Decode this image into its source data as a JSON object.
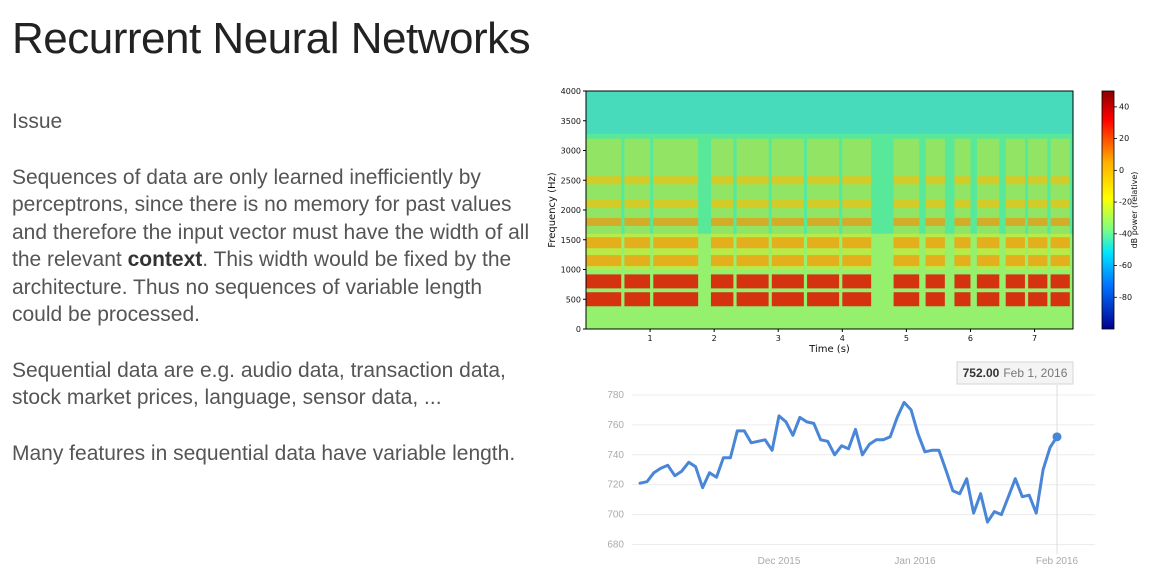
{
  "slide": {
    "title": "Recurrent Neural Networks",
    "issue_heading": "Issue",
    "para1_part1": "Sequences of data are only learned inefficiently by perceptrons, since there is no memory for past values and therefore the input vector must have the width of all the relevant ",
    "para1_bold": "context",
    "para1_part2": ". This width would be fixed by the architecture. Thus no sequences of variable length could be processed.",
    "para2": "Sequential data are e.g. audio data, transaction data, stock market prices, language, sensor data, ...",
    "para3": "Many features in sequential data have variable length."
  },
  "chart_data": [
    {
      "type": "heatmap",
      "xlabel": "Time (s)",
      "ylabel": "Frequency (Hz)",
      "xlim": [
        0,
        7.6
      ],
      "ylim": [
        0,
        4000
      ],
      "x_ticks": [
        "1",
        "2",
        "3",
        "4",
        "5",
        "6",
        "7"
      ],
      "y_ticks": [
        "0",
        "500",
        "1000",
        "1500",
        "2000",
        "2500",
        "3000",
        "3500",
        "4000"
      ],
      "colorbar_label": "dB power (relative)",
      "colorbar_ticks": [
        "40",
        "20",
        "0",
        "-20",
        "-40",
        "-60",
        "-80"
      ],
      "colorbar_range": [
        -100,
        50
      ],
      "colormap": "jet"
    },
    {
      "type": "line",
      "x_ticks": [
        "Dec 2015",
        "Jan 2016",
        "Feb 2016"
      ],
      "y_ticks": [
        "680",
        "700",
        "720",
        "740",
        "760",
        "780"
      ],
      "ylim": [
        675,
        790
      ],
      "line_color": "#4a86d8",
      "tooltip": {
        "value": "752.00",
        "date": "Feb 1, 2016"
      },
      "values": [
        721,
        722,
        728,
        731,
        733,
        726,
        729,
        735,
        732,
        718,
        728,
        725,
        738,
        738,
        756,
        756,
        748,
        749,
        750,
        743,
        766,
        762,
        753,
        765,
        762,
        761,
        750,
        749,
        740,
        746,
        744,
        757,
        740,
        747,
        750,
        750,
        752,
        765,
        775,
        770,
        754,
        742,
        743,
        743,
        730,
        716,
        714,
        724,
        701,
        714,
        695,
        702,
        700,
        712,
        724,
        712,
        713,
        701,
        730,
        745,
        752
      ]
    }
  ]
}
